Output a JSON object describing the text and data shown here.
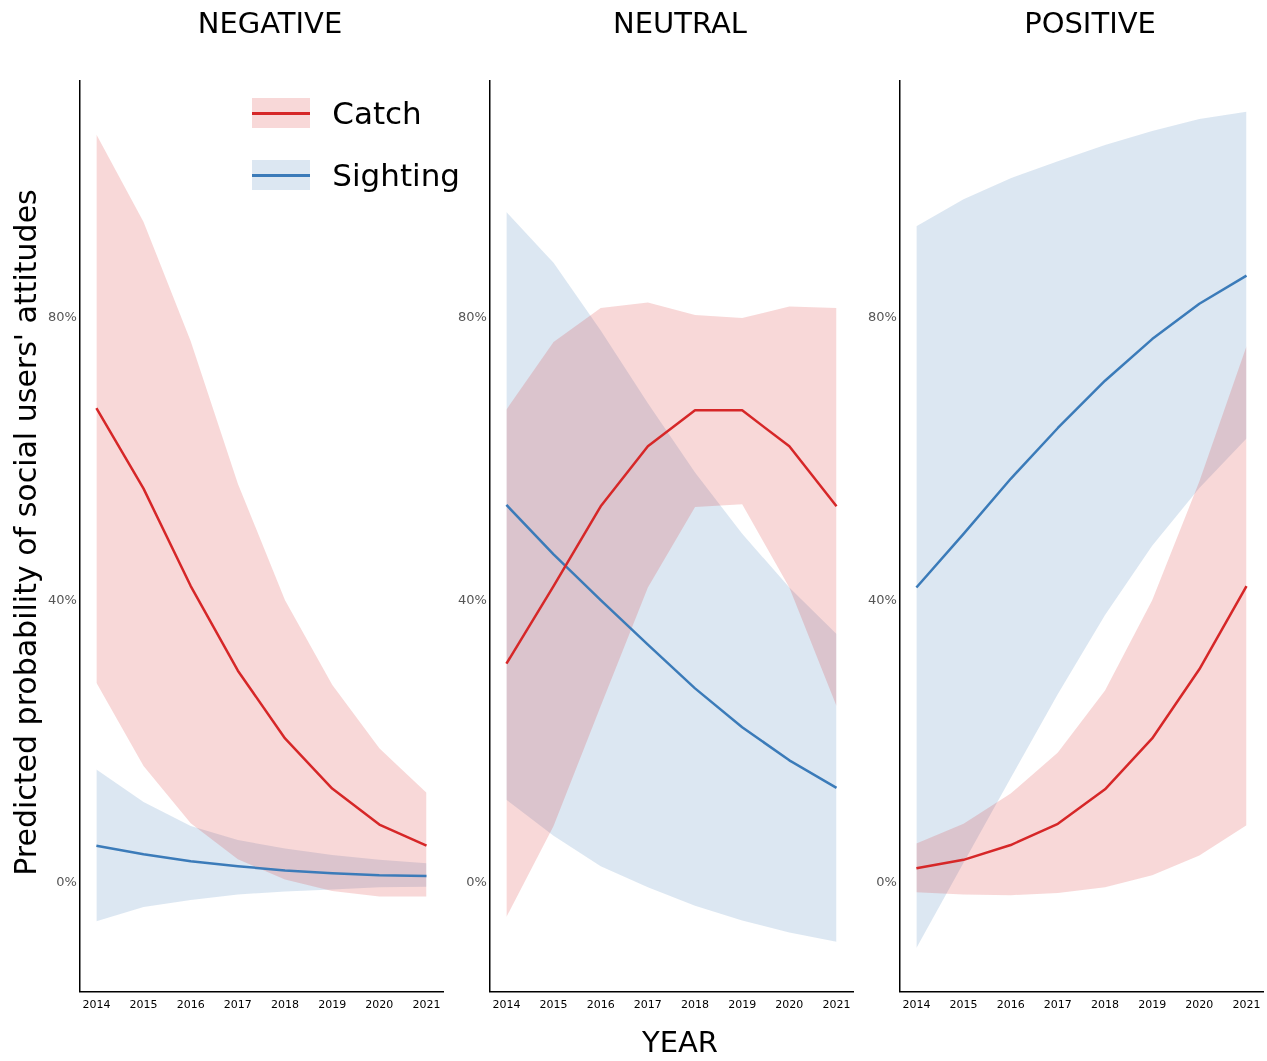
{
  "chart_data": [
    {
      "type": "line",
      "title": "NEGATIVE",
      "ylabel": "Predicted probability of social users' attitudes",
      "x": [
        2014,
        2015,
        2016,
        2017,
        2018,
        2019,
        2020,
        2021
      ],
      "xlim": [
        2013.65,
        2021.35
      ],
      "xticks": [
        2014,
        2015,
        2016,
        2017,
        2018,
        2019,
        2020,
        2021
      ],
      "ylim": [
        -15.5,
        113.6
      ],
      "yticks": [
        {
          "value": 0,
          "label": "0%"
        },
        {
          "value": 40,
          "label": "40%"
        },
        {
          "value": 80,
          "label": "80%"
        }
      ],
      "legend": "top right",
      "series": [
        {
          "name": "Catch",
          "color": "#d62728",
          "values": [
            67.2,
            55.8,
            42,
            30,
            20.4,
            13.3,
            8.2,
            5.2
          ],
          "lower": [
            28.3,
            16.5,
            8.4,
            3.3,
            0.4,
            -1.2,
            -2,
            -2
          ],
          "upper": [
            106,
            93.6,
            76.7,
            56.5,
            40,
            28,
            19,
            12.7
          ]
        },
        {
          "name": "Sighting",
          "color": "#3b7bb9",
          "values": [
            5.2,
            4,
            3,
            2.3,
            1.7,
            1.3,
            1,
            0.9
          ],
          "lower": [
            -5.5,
            -3.5,
            -2.5,
            -1.7,
            -1.3,
            -1,
            -0.7,
            -0.6
          ],
          "upper": [
            16,
            11.4,
            8,
            6,
            4.8,
            3.9,
            3.2,
            2.7
          ]
        }
      ]
    },
    {
      "type": "line",
      "title": "NEUTRAL",
      "xlabel": "YEAR",
      "x": [
        2014,
        2015,
        2016,
        2017,
        2018,
        2019,
        2020,
        2021
      ],
      "xlim": [
        2013.65,
        2021.35
      ],
      "xticks": [
        2014,
        2015,
        2016,
        2017,
        2018,
        2019,
        2020,
        2021
      ],
      "ylim": [
        -15.5,
        113.6
      ],
      "yticks": [
        {
          "value": 0,
          "label": "0%"
        },
        {
          "value": 40,
          "label": "40%"
        },
        {
          "value": 80,
          "label": "80%"
        }
      ],
      "series": [
        {
          "color": "#d62728",
          "values": [
            31,
            42,
            53.3,
            61.8,
            66.9,
            66.9,
            61.8,
            53.3
          ],
          "lower": [
            -4.9,
            8,
            25,
            41.8,
            53.2,
            53.6,
            41.8,
            25
          ],
          "upper": [
            67,
            76.6,
            81.4,
            82.2,
            80.4,
            80,
            81.6,
            81.4
          ]
        },
        {
          "color": "#3b7bb9",
          "values": [
            53.5,
            46.5,
            40,
            33.7,
            27.5,
            22,
            17.3,
            13.4
          ],
          "lower": [
            11.7,
            6.6,
            2.3,
            -0.7,
            -3.3,
            -5.4,
            -7.1,
            -8.4
          ],
          "upper": [
            95,
            87.8,
            78.2,
            67.9,
            58.1,
            49.4,
            41.8,
            35.2
          ]
        }
      ]
    },
    {
      "type": "line",
      "title": "POSITIVE",
      "x": [
        2014,
        2015,
        2016,
        2017,
        2018,
        2019,
        2020,
        2021
      ],
      "xlim": [
        2013.65,
        2021.35
      ],
      "xticks": [
        2014,
        2015,
        2016,
        2017,
        2018,
        2019,
        2020,
        2021
      ],
      "ylim": [
        -15.5,
        113.6
      ],
      "yticks": [
        {
          "value": 0,
          "label": "0%"
        },
        {
          "value": 40,
          "label": "40%"
        },
        {
          "value": 80,
          "label": "80%"
        }
      ],
      "series": [
        {
          "color": "#d62728",
          "values": [
            2,
            3.2,
            5.3,
            8.3,
            13.2,
            20.4,
            30.2,
            42
          ],
          "lower": [
            -1.4,
            -1.7,
            -1.8,
            -1.5,
            -0.7,
            1,
            3.8,
            8.1
          ],
          "upper": [
            5.5,
            8.3,
            12.6,
            18.4,
            27.2,
            40,
            56.8,
            76
          ]
        },
        {
          "color": "#3b7bb9",
          "values": [
            41.8,
            49.4,
            57.2,
            64.4,
            71.1,
            77,
            82,
            86
          ],
          "lower": [
            -9.3,
            2.8,
            14.8,
            26.7,
            37.9,
            47.7,
            55.9,
            62.9
          ],
          "upper": [
            93,
            96.8,
            99.8,
            102.2,
            104.5,
            106.5,
            108.2,
            109.2
          ]
        }
      ]
    }
  ]
}
